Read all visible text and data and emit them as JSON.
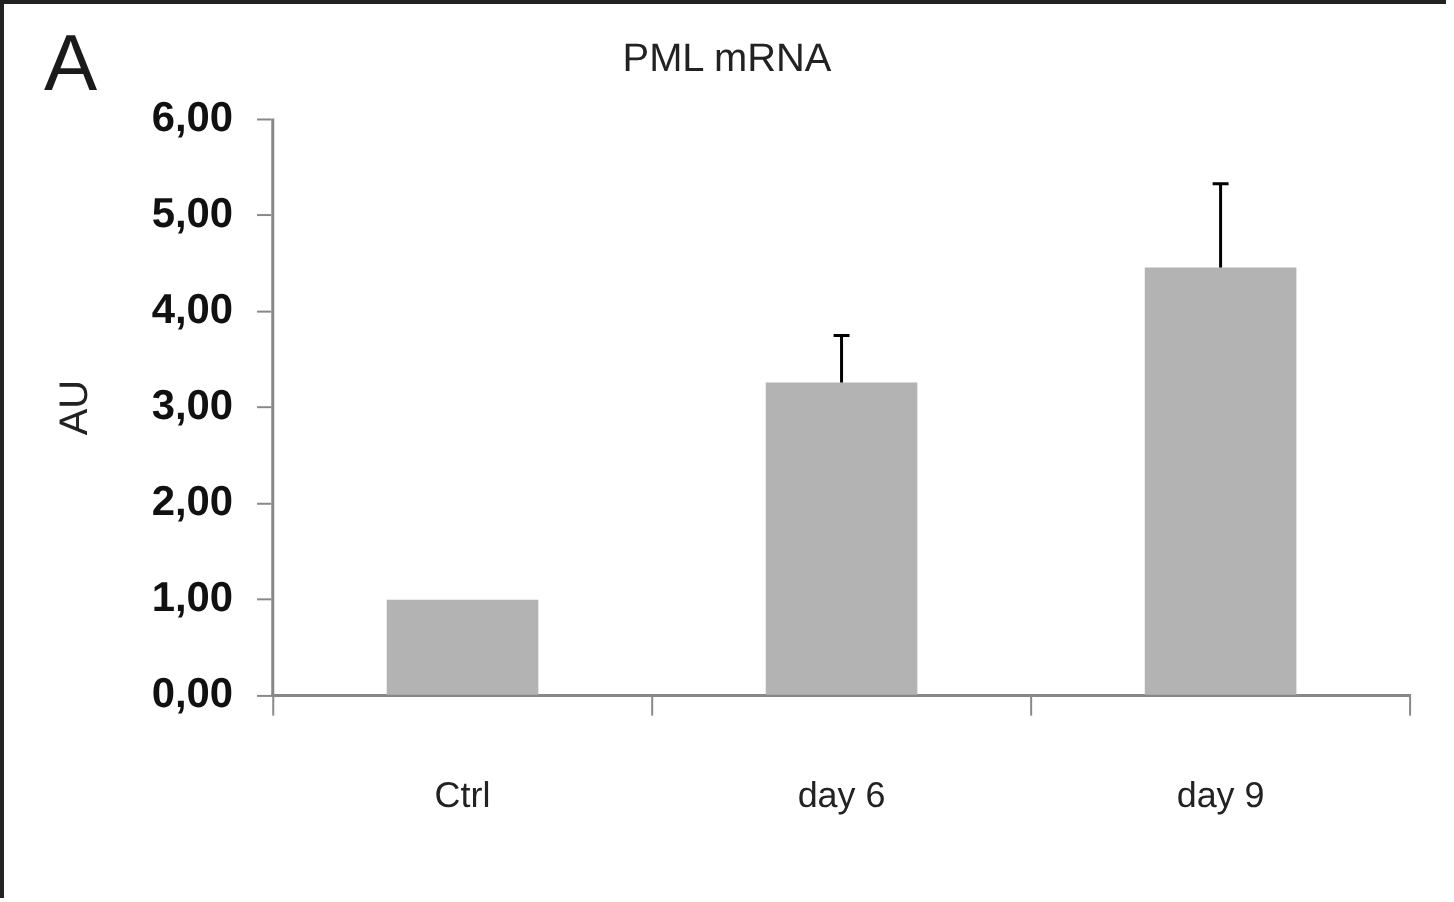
{
  "chart_data": {
    "type": "bar",
    "title": "PML mRNA",
    "ylabel": "AU",
    "annotations": [
      "A"
    ],
    "categories": [
      "Ctrl",
      "day 6",
      "day 9"
    ],
    "values": [
      1.0,
      3.26,
      4.46
    ],
    "color": "#b3b3b3",
    "errors": [
      null,
      [
        3.26,
        3.75
      ],
      [
        4.46,
        5.33
      ]
    ],
    "ylim": [
      0,
      6
    ],
    "yticks": [
      {
        "value": 0,
        "label": "0,00"
      },
      {
        "value": 1,
        "label": "1,00"
      },
      {
        "value": 2,
        "label": "2,00"
      },
      {
        "value": 3,
        "label": "3,00"
      },
      {
        "value": 4,
        "label": "4,00"
      },
      {
        "value": 5,
        "label": "5,00"
      },
      {
        "value": 6,
        "label": "6,00"
      }
    ],
    "grid": false,
    "legend": false
  }
}
